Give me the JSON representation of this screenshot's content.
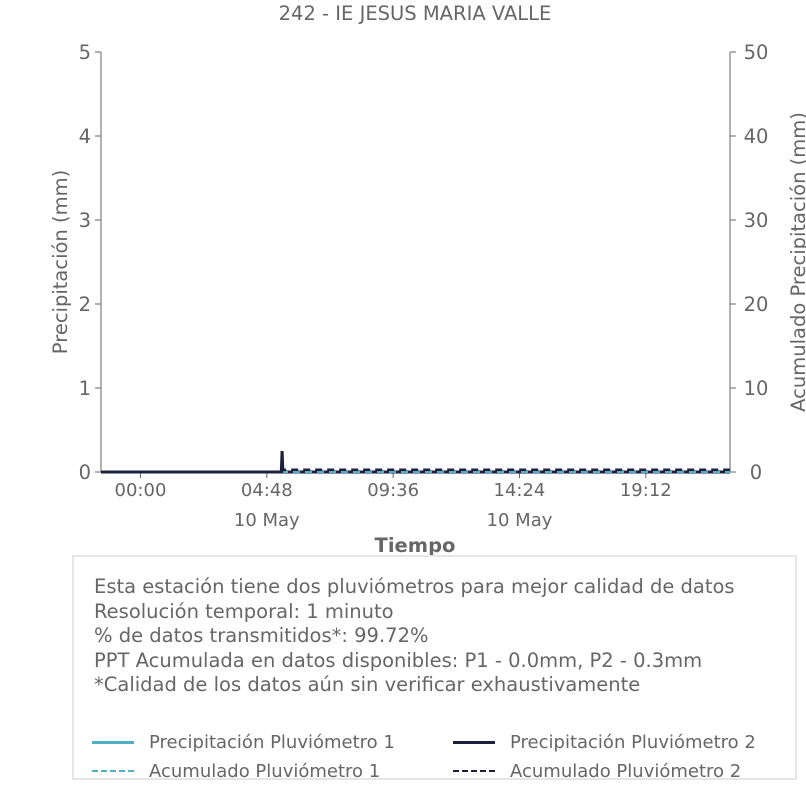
{
  "chart_data": {
    "type": "line",
    "title": "242 - IE JESUS MARIA VALLE",
    "xlabel": "Tiempo",
    "ylabel": "Precipitación (mm)",
    "y2label": "Acumulado Precipitación (mm)",
    "x_ticks": [
      "00:00",
      "04:48",
      "09:36",
      "14:24",
      "19:12"
    ],
    "x_tick_dates": [
      "",
      "10 May",
      "",
      "10 May",
      ""
    ],
    "x_range_hours": [
      -1.5,
      22.4
    ],
    "ylim": [
      0,
      5
    ],
    "y_ticks": [
      "0",
      "1",
      "2",
      "3",
      "4",
      "5"
    ],
    "y2lim": [
      0,
      50
    ],
    "y2_ticks": [
      "0",
      "10",
      "20",
      "30",
      "40",
      "50"
    ],
    "grid": false,
    "series": [
      {
        "name": "Precipitación Pluviómetro 1",
        "axis": "left",
        "color": "#4fb0c6",
        "style": "solid",
        "points": [
          [
            -1.5,
            0
          ],
          [
            22.4,
            0
          ]
        ]
      },
      {
        "name": "Precipitación Pluviómetro 2",
        "axis": "left",
        "color": "#1d1f3f",
        "style": "solid",
        "points": [
          [
            -1.5,
            0
          ],
          [
            5.35,
            0
          ],
          [
            5.38,
            0.25
          ],
          [
            5.41,
            0
          ],
          [
            22.4,
            0
          ]
        ]
      },
      {
        "name": "Acumulado Pluviómetro 1",
        "axis": "right",
        "color": "#4fb0c6",
        "style": "dashed",
        "points": [
          [
            -1.5,
            0
          ],
          [
            22.4,
            0
          ]
        ]
      },
      {
        "name": "Acumulado Pluviómetro 2",
        "axis": "right",
        "color": "#1d1f3f",
        "style": "dashed",
        "points": [
          [
            -1.5,
            0
          ],
          [
            5.38,
            0
          ],
          [
            5.41,
            0.3
          ],
          [
            22.4,
            0.3
          ]
        ]
      }
    ]
  },
  "info": {
    "line1": "Esta estación tiene dos pluviómetros para mejor calidad de datos",
    "line2": "Resolución temporal: 1 minuto",
    "line3": "% de datos transmitidos*: 99.72%",
    "line4": "PPT Acumulada en datos disponibles: P1 - 0.0mm, P2 - 0.3mm",
    "line5": "*Calidad de los datos aún sin verificar exhaustivamente"
  },
  "legend": {
    "item1": "Precipitación Pluviómetro 1",
    "item2": "Precipitación Pluviómetro 2",
    "item3": "Acumulado Pluviómetro 1",
    "item4": "Acumulado Pluviómetro 2"
  }
}
